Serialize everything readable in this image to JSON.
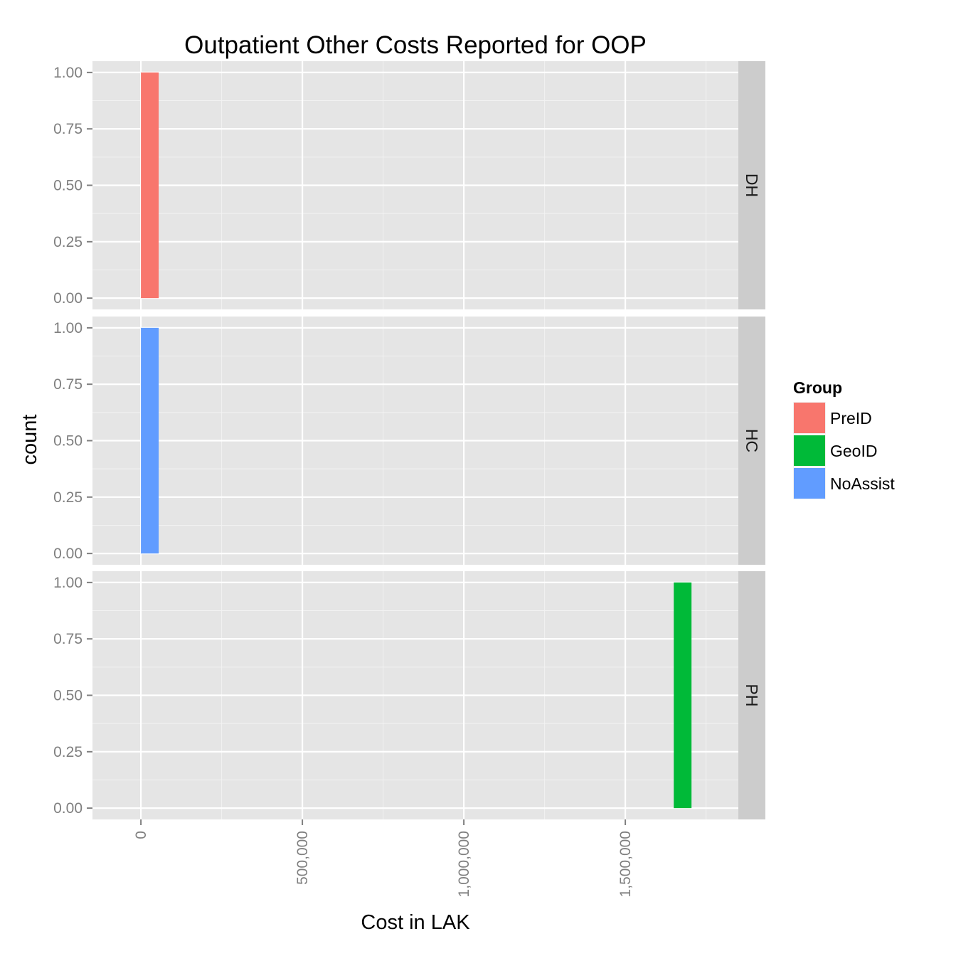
{
  "chart_data": {
    "type": "bar",
    "chart_kind": "faceted histogram",
    "title": "Outpatient Other Costs Reported for OOP",
    "xlabel": "Cost in LAK",
    "ylabel": "count",
    "xlim": [
      -150000,
      1850000
    ],
    "ylim": [
      -0.05,
      1.05
    ],
    "x_ticks": [
      0,
      500000,
      1000000,
      1500000
    ],
    "x_tick_labels": [
      "0",
      "500,000",
      "1,000,000",
      "1,500,000"
    ],
    "y_ticks": [
      0,
      0.25,
      0.5,
      0.75,
      1
    ],
    "y_tick_labels": [
      "0.00",
      "0.25",
      "0.50",
      "0.75",
      "1.00"
    ],
    "grid": true,
    "panel_background": "#e5e5e5",
    "strip_background": "#cccccc",
    "facets": [
      {
        "label": "DH",
        "bars": [
          {
            "group": "PreID",
            "x_start": 0,
            "x_end": 55000,
            "count": 1
          }
        ]
      },
      {
        "label": "HC",
        "bars": [
          {
            "group": "NoAssist",
            "x_start": 0,
            "x_end": 55000,
            "count": 1
          }
        ]
      },
      {
        "label": "PH",
        "bars": [
          {
            "group": "GeoID",
            "x_start": 1650000,
            "x_end": 1705000,
            "count": 1
          }
        ]
      }
    ],
    "legend": {
      "title": "Group",
      "position": "right",
      "entries": [
        {
          "name": "PreID",
          "color": "#f8766d"
        },
        {
          "name": "GeoID",
          "color": "#00ba38"
        },
        {
          "name": "NoAssist",
          "color": "#619cff"
        }
      ]
    }
  }
}
